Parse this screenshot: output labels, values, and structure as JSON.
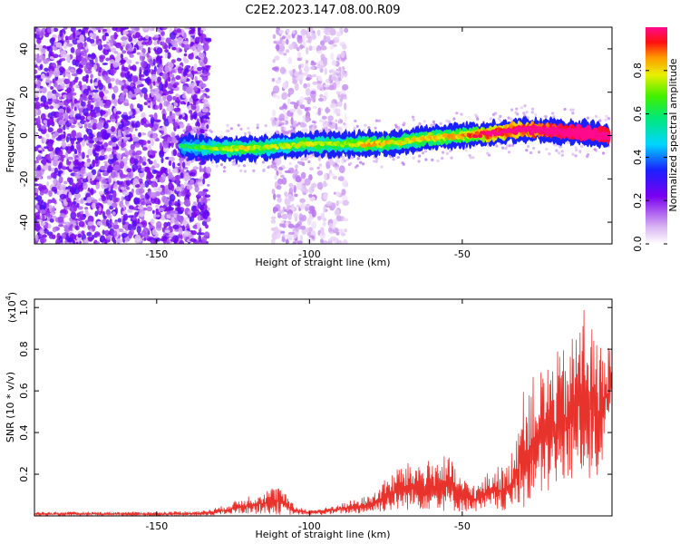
{
  "title": "C2E2.2023.147.08.00.R09",
  "chart_data": [
    {
      "type": "heatmap",
      "title": "C2E2.2023.147.08.00.R09",
      "xlabel": "Height of straight line (km)",
      "ylabel": "Frequency (Hz)",
      "xlim": [
        -190,
        -1
      ],
      "ylim": [
        -50,
        50
      ],
      "x_ticks": [
        -150,
        -100,
        -50
      ],
      "x_tick_labels": [
        "-150",
        "-100",
        "-50"
      ],
      "y_ticks": [
        -40,
        -20,
        0,
        20,
        40
      ],
      "y_tick_labels": [
        "-40",
        "-20",
        "0",
        "20",
        "40"
      ],
      "ridge": {
        "x": [
          -142,
          -130,
          -120,
          -110,
          -100,
          -90,
          -80,
          -70,
          -60,
          -50,
          -40,
          -30,
          -20,
          -10,
          -2
        ],
        "frequency": [
          -5,
          -6,
          -6,
          -5,
          -4,
          -4,
          -4,
          -3,
          -1,
          0,
          1,
          3,
          2,
          1,
          0
        ],
        "amplitude": [
          0.25,
          0.4,
          0.45,
          0.4,
          0.45,
          0.4,
          0.5,
          0.45,
          0.5,
          0.5,
          0.7,
          0.75,
          0.85,
          0.9,
          0.85
        ]
      },
      "noise_regions": [
        {
          "x_range": [
            -190,
            -133
          ],
          "freq_range": [
            -50,
            50
          ],
          "amplitude": 0.2
        },
        {
          "x_range": [
            -112,
            -98
          ],
          "freq_range": [
            -50,
            50
          ],
          "amplitude": 0.1
        },
        {
          "x_range": [
            -97,
            -88
          ],
          "freq_range": [
            -50,
            50
          ],
          "amplitude": 0.08
        }
      ],
      "colorbar": {
        "label": "Normalized spectral amplitude",
        "range": [
          0.0,
          1.0
        ],
        "ticks": [
          0.0,
          0.2,
          0.4,
          0.6,
          0.8
        ],
        "tick_labels": [
          "0.0",
          "0.2",
          "0.4",
          "0.6",
          "0.8"
        ]
      }
    },
    {
      "type": "line",
      "xlabel": "Height of straight line (km)",
      "ylabel": "SNR (10 * v/v)",
      "y_scale_label": "(x10",
      "y_scale_exponent": "4",
      "y_scale_suffix": ")",
      "xlim": [
        -190,
        -1
      ],
      "ylim": [
        0,
        1.04
      ],
      "x_ticks": [
        -150,
        -100,
        -50
      ],
      "x_tick_labels": [
        "-150",
        "-100",
        "-50"
      ],
      "y_ticks": [
        0.2,
        0.4,
        0.6,
        0.8,
        1.0
      ],
      "y_tick_labels": [
        "0.2",
        "0.4",
        "0.6",
        "0.8",
        "1.0"
      ],
      "color": "#e8332c",
      "envelope": {
        "x": [
          -190,
          -150,
          -135,
          -128,
          -120,
          -115,
          -110,
          -105,
          -100,
          -95,
          -90,
          -85,
          -80,
          -75,
          -70,
          -65,
          -60,
          -55,
          -50,
          -45,
          -40,
          -35,
          -30,
          -28,
          -25,
          -20,
          -15,
          -10,
          -8,
          -5,
          -2,
          -1
        ],
        "low": [
          0.0,
          0.0,
          0.0,
          0.005,
          0.01,
          0.01,
          0.005,
          0.005,
          0.005,
          0.005,
          0.01,
          0.01,
          0.015,
          0.02,
          0.025,
          0.03,
          0.03,
          0.02,
          0.02,
          0.02,
          0.02,
          0.02,
          0.03,
          0.05,
          0.07,
          0.12,
          0.15,
          0.2,
          0.15,
          0.2,
          0.4,
          0.55
        ],
        "high": [
          0.02,
          0.02,
          0.025,
          0.05,
          0.1,
          0.12,
          0.15,
          0.05,
          0.03,
          0.04,
          0.06,
          0.08,
          0.1,
          0.18,
          0.25,
          0.26,
          0.27,
          0.3,
          0.18,
          0.15,
          0.24,
          0.24,
          0.6,
          0.65,
          0.7,
          0.78,
          0.82,
          1.04,
          0.95,
          0.82,
          0.86,
          0.7
        ]
      }
    }
  ]
}
